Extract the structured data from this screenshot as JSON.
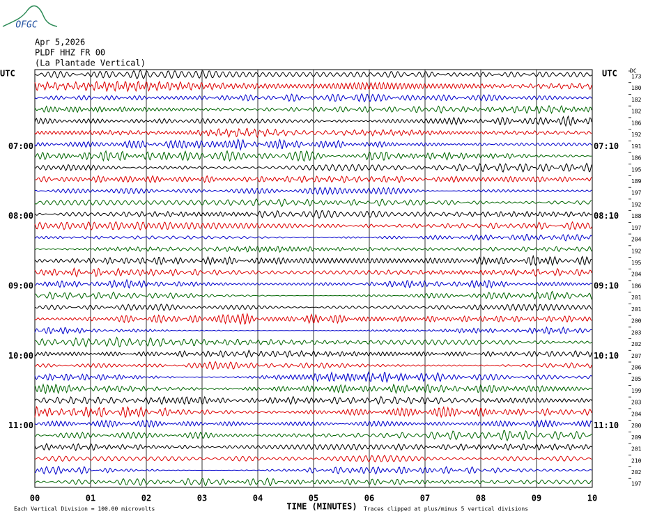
{
  "header": {
    "logo": "OFGC",
    "date": "Apr 5,2026",
    "station": "PLDF HHZ FR 00",
    "location": "(La Plantade Vertical)"
  },
  "left_labels": [
    "UTC",
    "07:00",
    "08:00",
    "09:00",
    "10:00",
    "11:00"
  ],
  "right_labels": [
    "UTC",
    "07:10",
    "08:10",
    "09:10",
    "10:10",
    "11:10"
  ],
  "dc_header": "DC",
  "dc_values": [
    173,
    180,
    182,
    182,
    186,
    192,
    191,
    186,
    195,
    189,
    197,
    192,
    188,
    197,
    204,
    192,
    195,
    204,
    186,
    201,
    201,
    200,
    203,
    202,
    207,
    206,
    205,
    199,
    203,
    204,
    200,
    209,
    201,
    210,
    202,
    197
  ],
  "trace_colors": [
    "#000000",
    "#dd0000",
    "#0000cc",
    "#006600"
  ],
  "x_ticks": [
    "00",
    "01",
    "02",
    "03",
    "04",
    "05",
    "06",
    "07",
    "08",
    "09",
    "10"
  ],
  "x_label": "TIME (MINUTES)",
  "footer": {
    "scale": "Each Vertical Division =  100.00 microvolts",
    "clip": "Traces clipped at plus/minus 5 vertical divisions"
  }
}
